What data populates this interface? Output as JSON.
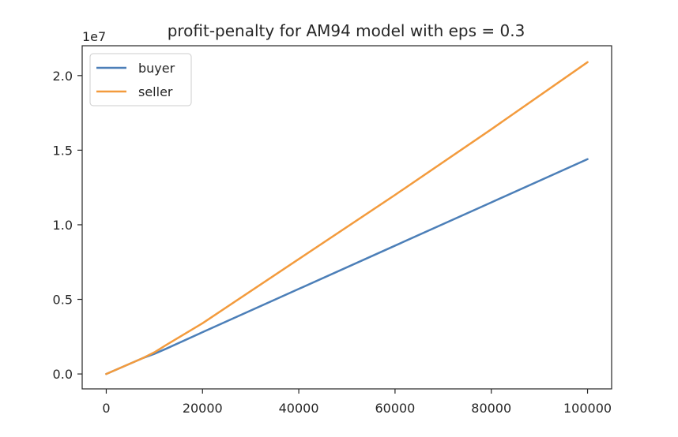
{
  "chart_data": {
    "type": "line",
    "title": "profit-penalty for AM94 model with eps = 0.3",
    "xlabel": "",
    "ylabel": "",
    "y_offset_label": "1e7",
    "xlim": [
      -5000,
      105000
    ],
    "ylim": [
      -0.1,
      2.2
    ],
    "x_ticks": [
      0,
      20000,
      40000,
      60000,
      80000,
      100000
    ],
    "x_tick_labels": [
      "0",
      "20000",
      "40000",
      "60000",
      "80000",
      "100000"
    ],
    "y_ticks": [
      0.0,
      0.5,
      1.0,
      1.5,
      2.0
    ],
    "y_tick_labels": [
      "0.0",
      "0.5",
      "1.0",
      "1.5",
      "2.0"
    ],
    "grid": false,
    "legend_position": "top-left",
    "series": [
      {
        "name": "buyer",
        "color": "#4c7fb8",
        "x": [
          0,
          2500,
          5000,
          7500,
          10000,
          12500,
          20000,
          40000,
          60000,
          80000,
          100000
        ],
        "y": [
          0.0,
          0.035,
          0.07,
          0.105,
          0.135,
          0.17,
          0.28,
          0.57,
          0.86,
          1.15,
          1.44
        ]
      },
      {
        "name": "seller",
        "color": "#f39b3d",
        "x": [
          0,
          2500,
          5000,
          7500,
          10000,
          12500,
          20000,
          40000,
          60000,
          80000,
          100000
        ],
        "y": [
          0.0,
          0.035,
          0.07,
          0.105,
          0.145,
          0.195,
          0.34,
          0.77,
          1.2,
          1.64,
          2.09
        ]
      }
    ]
  }
}
